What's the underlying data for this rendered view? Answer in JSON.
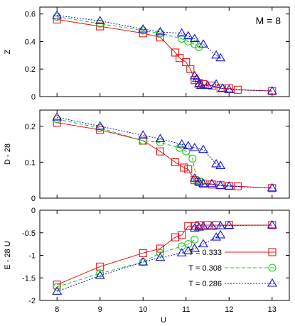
{
  "annotation": "M = 8",
  "xlabel": "U",
  "chart_data": [
    {
      "type": "line",
      "ylabel": "Z",
      "xlim": [
        7.6,
        13.4
      ],
      "ylim": [
        0,
        0.65
      ],
      "yticks": [
        0,
        0.2,
        0.4,
        0.6
      ],
      "ytick_labels": [
        "0",
        "0.2",
        "0.4",
        "0.6"
      ],
      "annotation": "M = 8",
      "series": [
        {
          "name": "T = 0.333",
          "color": "#e8141a",
          "marker": "square",
          "dash": "solid",
          "x": [
            8,
            9,
            10,
            10.4,
            10.75,
            10.85,
            11,
            11.1,
            11.2,
            11.3,
            11.4,
            11.6,
            11.8,
            12,
            12.2,
            13
          ],
          "y": [
            0.56,
            0.51,
            0.46,
            0.43,
            0.32,
            0.28,
            0.25,
            0.2,
            0.12,
            0.1,
            0.09,
            0.08,
            0.06,
            0.06,
            0.05,
            0.04
          ]
        },
        {
          "name": "T = 0.308",
          "color": "#1fc41f",
          "marker": "circle",
          "dash": "dashed",
          "x": [
            8,
            9,
            10,
            10.4,
            10.9,
            11.05,
            11.2,
            11.3
          ],
          "y": [
            0.58,
            0.53,
            0.48,
            0.46,
            0.42,
            0.4,
            0.38,
            0.36
          ]
        },
        {
          "name": "T = 0.286",
          "color": "#1414d2",
          "marker": "triangle",
          "dash": "dotted",
          "x": [
            8,
            9,
            10,
            10.4,
            10.9,
            11.05,
            11.2,
            11.4,
            11.7,
            11.8
          ],
          "y": [
            0.59,
            0.55,
            0.49,
            0.47,
            0.46,
            0.44,
            0.42,
            0.38,
            0.3,
            0.28
          ]
        },
        {
          "name": "T = 0.286",
          "color": "#1414d2",
          "marker": "triangle",
          "dash": "dotted",
          "x": [
            11.2,
            11.25,
            11.3,
            11.35,
            11.5,
            11.7,
            11.85,
            12,
            13
          ],
          "y": [
            0.15,
            0.13,
            0.09,
            0.08,
            0.08,
            0.09,
            0.06,
            0.05,
            0.04
          ]
        }
      ]
    },
    {
      "type": "line",
      "ylabel": "D - 28",
      "xlim": [
        7.6,
        13.4
      ],
      "ylim": [
        0,
        0.245
      ],
      "yticks": [
        0,
        0.1,
        0.2
      ],
      "ytick_labels": [
        "0",
        "0.1",
        "0.2"
      ],
      "series": [
        {
          "name": "T = 0.333",
          "color": "#e8141a",
          "marker": "square",
          "dash": "solid",
          "x": [
            8,
            9,
            10,
            10.4,
            10.75,
            10.95,
            11.05,
            11.2,
            11.3,
            11.4,
            11.6,
            11.8,
            12,
            12.2,
            13
          ],
          "y": [
            0.21,
            0.19,
            0.16,
            0.13,
            0.1,
            0.085,
            0.08,
            0.05,
            0.045,
            0.04,
            0.038,
            0.036,
            0.034,
            0.033,
            0.028
          ]
        },
        {
          "name": "T = 0.308",
          "color": "#1fc41f",
          "marker": "circle",
          "dash": "dashed",
          "x": [
            8,
            9,
            10,
            10.4,
            10.85,
            11.0,
            11.15,
            11.25,
            11.35
          ],
          "y": [
            0.22,
            0.195,
            0.16,
            0.155,
            0.14,
            0.13,
            0.11,
            0.05,
            0.045
          ]
        },
        {
          "name": "T = 0.286",
          "color": "#1414d2",
          "marker": "triangle",
          "dash": "dotted",
          "x": [
            8,
            9,
            10,
            10.4,
            10.9,
            11.05,
            11.2,
            11.4,
            11.7,
            11.8
          ],
          "y": [
            0.225,
            0.2,
            0.175,
            0.165,
            0.15,
            0.145,
            0.14,
            0.135,
            0.095,
            0.09
          ]
        },
        {
          "name": "T = 0.286",
          "color": "#1414d2",
          "marker": "triangle",
          "dash": "dotted",
          "x": [
            11.2,
            11.3,
            11.4,
            11.6,
            11.8,
            12,
            13
          ],
          "y": [
            0.055,
            0.045,
            0.04,
            0.04,
            0.035,
            0.033,
            0.028
          ]
        }
      ]
    },
    {
      "type": "line",
      "ylabel": "E - 28 U",
      "xlim": [
        7.6,
        13.4
      ],
      "ylim": [
        -2,
        0
      ],
      "yticks": [
        -2,
        -1.5,
        -1,
        -0.5,
        0
      ],
      "ytick_labels": [
        "-2",
        "-1.5",
        "-1",
        "-0.5",
        "0"
      ],
      "series": [
        {
          "name": "T = 0.333",
          "color": "#e8141a",
          "marker": "square",
          "dash": "solid",
          "x": [
            8,
            9,
            10,
            10.4,
            10.75,
            10.9,
            11.05,
            11.2,
            11.3,
            11.5,
            11.7,
            12,
            13
          ],
          "y": [
            -1.65,
            -1.25,
            -0.95,
            -0.85,
            -0.6,
            -0.55,
            -0.35,
            -0.35,
            -0.33,
            -0.33,
            -0.33,
            -0.33,
            -0.33
          ]
        },
        {
          "name": "T = 0.308",
          "color": "#1fc41f",
          "marker": "circle",
          "dash": "dashed",
          "x": [
            8,
            9,
            10,
            10.4,
            10.9,
            11.05,
            11.2
          ],
          "y": [
            -1.7,
            -1.4,
            -1.15,
            -0.95,
            -0.8,
            -0.75,
            -0.65
          ]
        },
        {
          "name": "T = 0.286",
          "color": "#1414d2",
          "marker": "triangle",
          "dash": "dotted",
          "x": [
            8,
            9,
            10,
            10.4,
            10.9,
            11.05,
            11.2,
            11.4,
            11.7,
            11.8
          ],
          "y": [
            -1.8,
            -1.45,
            -1.15,
            -1.05,
            -0.95,
            -0.9,
            -0.85,
            -0.75,
            -0.6,
            -0.55
          ]
        },
        {
          "name": "T = 0.286",
          "color": "#1414d2",
          "marker": "triangle",
          "dash": "dotted",
          "x": [
            11.2,
            11.3,
            11.4,
            11.6,
            11.8,
            12,
            13
          ],
          "y": [
            -0.4,
            -0.38,
            -0.36,
            -0.36,
            -0.35,
            -0.34,
            -0.33
          ]
        }
      ],
      "legend": {
        "placement": "bottom-right",
        "entries": [
          {
            "label": "T = 0.333",
            "color": "#e8141a",
            "marker": "square",
            "dash": "solid"
          },
          {
            "label": "T = 0.308",
            "color": "#1fc41f",
            "marker": "circle",
            "dash": "dashed"
          },
          {
            "label": "T = 0.286",
            "color": "#1414d2",
            "marker": "triangle",
            "dash": "dotted"
          }
        ]
      }
    }
  ],
  "xticks": [
    8,
    9,
    10,
    11,
    12,
    13
  ],
  "xtick_labels": [
    "8",
    "9",
    "10",
    "11",
    "12",
    "13"
  ]
}
